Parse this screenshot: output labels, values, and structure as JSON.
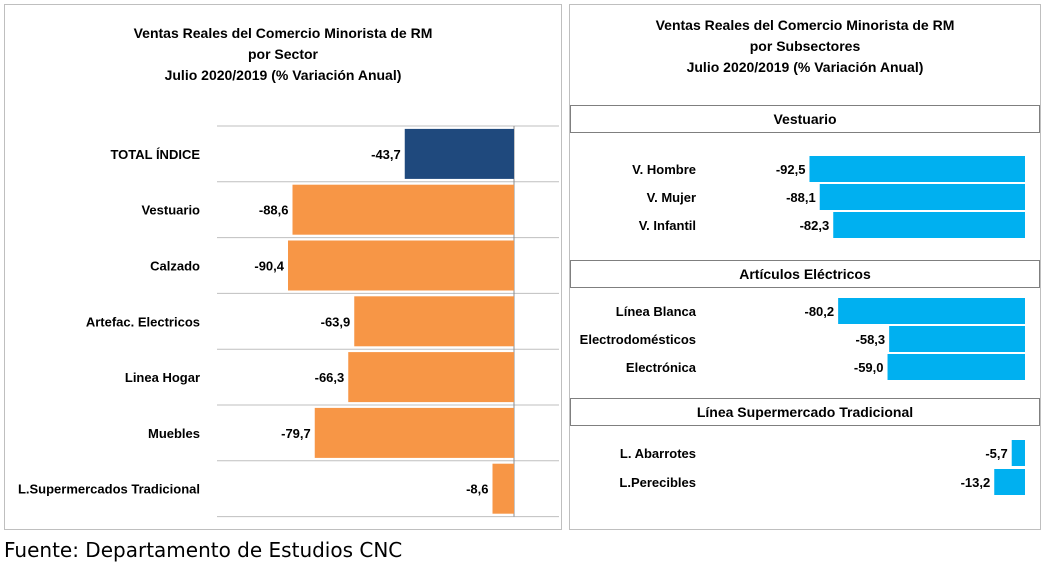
{
  "colors": {
    "total": "#1F497D",
    "sector": "#F79646",
    "subsector": "#00B0F0"
  },
  "left_chart": {
    "title_lines": [
      "Ventas Reales del Comercio Minorista de RM",
      "por Sector",
      "Julio 2020/2019 (% Variación Anual)"
    ]
  },
  "right_chart": {
    "title_lines": [
      "Ventas Reales del Comercio Minorista de RM",
      "por Subsectores",
      "Julio 2020/2019 (% Variación Anual)"
    ]
  },
  "chart_data": [
    {
      "type": "bar",
      "orientation": "horizontal",
      "title": "Ventas Reales del Comercio Minorista de RM por Sector Julio 2020/2019 (% Variación Anual)",
      "categories": [
        "TOTAL ÍNDICE",
        "Vestuario",
        "Calzado",
        "Artefac. Electricos",
        "Linea Hogar",
        "Muebles",
        "L.Supermercados Tradicional"
      ],
      "values": [
        -43.7,
        -88.6,
        -90.4,
        -63.9,
        -66.3,
        -79.7,
        -8.6
      ],
      "value_labels": [
        "-43,7",
        "-88,6",
        "-90,4",
        "-63,9",
        "-66,3",
        "-79,7",
        "-8,6"
      ],
      "xlim": [
        -100,
        0
      ],
      "grid": true
    },
    {
      "type": "bar",
      "orientation": "horizontal",
      "title": "Ventas Reales del Comercio Minorista de RM por Subsectores Julio 2020/2019 (% Variación Anual)",
      "groups": [
        {
          "name": "Vestuario",
          "categories": [
            "V. Hombre",
            "V. Mujer",
            "V. Infantil"
          ],
          "values": [
            -92.5,
            -88.1,
            -82.3
          ],
          "value_labels": [
            "-92,5",
            "-88,1",
            "-82,3"
          ]
        },
        {
          "name": "Artículos Eléctricos",
          "categories": [
            "Línea Blanca",
            "Electrodomésticos",
            "Electrónica"
          ],
          "values": [
            -80.2,
            -58.3,
            -59.0
          ],
          "value_labels": [
            "-80,2",
            "-58,3",
            "-59,0"
          ]
        },
        {
          "name": "Línea Supermercado Tradicional",
          "categories": [
            "L. Abarrotes",
            "L.Perecibles"
          ],
          "values": [
            -5.7,
            -13.2
          ],
          "value_labels": [
            "-5,7",
            "-13,2"
          ]
        }
      ],
      "xlim": [
        -100,
        0
      ],
      "grid": false
    }
  ],
  "source": "Fuente: Departamento de Estudios CNC"
}
